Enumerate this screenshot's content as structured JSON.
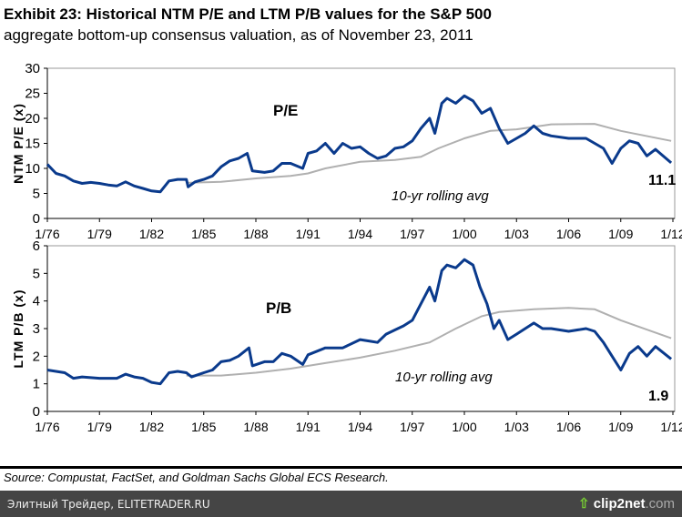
{
  "header": {
    "title": "Exhibit 23: Historical NTM P/E and LTM P/B values for the S&P 500",
    "subtitle": "aggregate bottom-up consensus valuation, as of November 23, 2011"
  },
  "footer": {
    "source": "Source: Compustat, FactSet, and Goldman Sachs Global ECS Research."
  },
  "watermark": {
    "left": "Элитный Трейдер, ELITETRADER.RU",
    "right_brand": "clip2net",
    "right_domain": ".com"
  },
  "colors": {
    "series": "#0a3a8c",
    "average": "#b0b0b0"
  },
  "chart_data": [
    {
      "type": "line",
      "id": "pe",
      "panel_label": "P/E",
      "ylabel": "NTM P/E (x)",
      "ylim": [
        0,
        30
      ],
      "yticks": [
        0,
        5,
        10,
        15,
        20,
        25,
        30
      ],
      "xticks": [
        "1/76",
        "1/79",
        "1/82",
        "1/85",
        "1/88",
        "1/91",
        "1/94",
        "1/97",
        "1/00",
        "1/03",
        "1/06",
        "1/09",
        "1/12"
      ],
      "xlim": [
        1976,
        2012
      ],
      "avg_label": "10-yr rolling avg",
      "end_label": "11.1",
      "series": [
        {
          "name": "P/E",
          "x": [
            1976,
            1976.5,
            1977,
            1977.5,
            1978,
            1978.5,
            1979,
            1979.5,
            1980,
            1980.5,
            1981,
            1981.5,
            1982,
            1982.5,
            1983,
            1983.5,
            1984,
            1984.1,
            1984.5,
            1985,
            1985.5,
            1986,
            1986.5,
            1987,
            1987.5,
            1987.8,
            1988.5,
            1989,
            1989.5,
            1990,
            1990.7,
            1991,
            1991.5,
            1992,
            1992.5,
            1993,
            1993.5,
            1994,
            1994.5,
            1995,
            1995.5,
            1996,
            1996.5,
            1997,
            1997.5,
            1998,
            1998.3,
            1998.7,
            1999,
            1999.5,
            2000,
            2000.5,
            2001,
            2001.5,
            2002,
            2002.5,
            2003,
            2003.5,
            2004,
            2004.5,
            2005,
            2006,
            2007,
            2008,
            2008.5,
            2009,
            2009.5,
            2010,
            2010.5,
            2011,
            2011.9
          ],
          "y": [
            10.8,
            9,
            8.5,
            7.5,
            7,
            7.2,
            7,
            6.7,
            6.5,
            7.3,
            6.5,
            6,
            5.5,
            5.3,
            7.5,
            7.8,
            7.8,
            6.3,
            7.3,
            7.8,
            8.5,
            10.3,
            11.5,
            12,
            13,
            9.5,
            9.2,
            9.5,
            11,
            11,
            10,
            13,
            13.5,
            15,
            13,
            15,
            14,
            14.3,
            13,
            12,
            12.5,
            14,
            14.3,
            15.5,
            18,
            20,
            17,
            23,
            24,
            23,
            24.5,
            23.5,
            21,
            22,
            18,
            15,
            16,
            17,
            18.5,
            17,
            16.5,
            16,
            16,
            14,
            11,
            14,
            15.5,
            15,
            12.5,
            13.8,
            11.1
          ]
        },
        {
          "name": "10-yr rolling avg",
          "x": [
            1984,
            1986,
            1988,
            1990,
            1991,
            1992,
            1994,
            1996,
            1997.5,
            1998.5,
            2000,
            2001.5,
            2003,
            2005,
            2007.5,
            2009,
            2011.9
          ],
          "y": [
            7.1,
            7.3,
            8,
            8.5,
            9,
            10,
            11.3,
            11.7,
            12.3,
            14,
            16,
            17.5,
            17.8,
            18.8,
            18.9,
            17.5,
            15.5
          ]
        }
      ]
    },
    {
      "type": "line",
      "id": "pb",
      "panel_label": "P/B",
      "ylabel": "LTM P/B (x)",
      "ylim": [
        0,
        6
      ],
      "yticks": [
        0,
        1,
        2,
        3,
        4,
        5,
        6
      ],
      "xticks": [
        "1/76",
        "1/79",
        "1/82",
        "1/85",
        "1/88",
        "1/91",
        "1/94",
        "1/97",
        "1/00",
        "1/03",
        "1/06",
        "1/09",
        "1/12"
      ],
      "xlim": [
        1976,
        2012
      ],
      "avg_label": "10-yr rolling avg",
      "end_label": "1.9",
      "series": [
        {
          "name": "P/B",
          "x": [
            1976,
            1977,
            1977.5,
            1978,
            1979,
            1980,
            1980.5,
            1981,
            1981.5,
            1982,
            1982.5,
            1983,
            1983.5,
            1984,
            1984.3,
            1985,
            1985.5,
            1986,
            1986.5,
            1987,
            1987.6,
            1987.8,
            1988.5,
            1989,
            1989.5,
            1990,
            1990.7,
            1991,
            1992,
            1993,
            1994,
            1994.5,
            1995,
            1995.5,
            1996,
            1996.5,
            1997,
            1997.5,
            1998,
            1998.3,
            1998.7,
            1999,
            1999.5,
            2000,
            2000.5,
            2000.9,
            2001.3,
            2001.7,
            2002,
            2002.5,
            2003,
            2003.5,
            2004,
            2004.5,
            2005,
            2006,
            2007,
            2007.5,
            2008,
            2008.5,
            2009,
            2009.5,
            2010,
            2010.5,
            2011,
            2011.9
          ],
          "y": [
            1.5,
            1.4,
            1.2,
            1.25,
            1.2,
            1.2,
            1.35,
            1.25,
            1.2,
            1.05,
            1.0,
            1.4,
            1.45,
            1.4,
            1.25,
            1.4,
            1.5,
            1.8,
            1.85,
            2.0,
            2.3,
            1.65,
            1.8,
            1.8,
            2.1,
            2.0,
            1.7,
            2.05,
            2.3,
            2.3,
            2.6,
            2.55,
            2.5,
            2.8,
            2.95,
            3.1,
            3.3,
            3.9,
            4.5,
            4.0,
            5.1,
            5.3,
            5.2,
            5.5,
            5.3,
            4.5,
            3.9,
            3.0,
            3.3,
            2.6,
            2.8,
            3.0,
            3.2,
            3.0,
            3.0,
            2.9,
            3.0,
            2.9,
            2.5,
            2.0,
            1.5,
            2.1,
            2.35,
            2.0,
            2.35,
            1.9
          ]
        },
        {
          "name": "10-yr rolling avg",
          "x": [
            1984,
            1986,
            1988,
            1990,
            1992,
            1994,
            1996,
            1998,
            1999.5,
            2001,
            2002,
            2004,
            2006,
            2007.5,
            2009,
            2011.9
          ],
          "y": [
            1.3,
            1.3,
            1.4,
            1.55,
            1.75,
            1.95,
            2.2,
            2.5,
            3.0,
            3.45,
            3.6,
            3.7,
            3.75,
            3.7,
            3.3,
            2.65
          ]
        }
      ]
    }
  ]
}
